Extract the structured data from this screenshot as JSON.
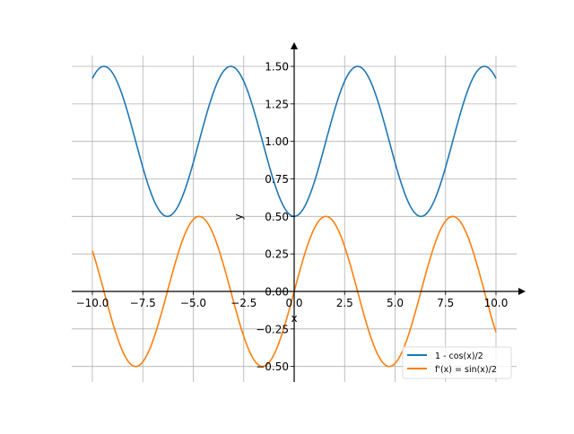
{
  "chart_data": {
    "type": "line",
    "title": "",
    "xlabel": "x",
    "ylabel": "y",
    "xlim": [
      -11,
      11.04
    ],
    "ylim": [
      -0.6,
      1.58
    ],
    "grid": true,
    "legend_position": "lower-right",
    "x_ticks": [
      -10,
      -7.5,
      -5,
      -2.5,
      0,
      2.5,
      5,
      7.5,
      10
    ],
    "x_tick_labels": [
      "−10.0",
      "−7.5",
      "−5.0",
      "−2.5",
      "0.0",
      "2.5",
      "5.0",
      "7.5",
      "10.0"
    ],
    "y_ticks": [
      -0.5,
      -0.25,
      0,
      0.25,
      0.5,
      0.75,
      1,
      1.25,
      1.5
    ],
    "y_tick_labels": [
      "−0.50",
      "−0.25",
      "0.00",
      "0.25",
      "0.50",
      "0.75",
      "1.00",
      "1.25",
      "1.50"
    ],
    "x_range": [
      -10,
      10
    ],
    "series": [
      {
        "name": "1 - cos(x)/2",
        "expr": "1 - cos(x)/2",
        "color": "#1f77b4"
      },
      {
        "name": "f'(x) = sin(x)/2",
        "expr": "sin(x)/2",
        "color": "#ff7f0e"
      }
    ]
  }
}
